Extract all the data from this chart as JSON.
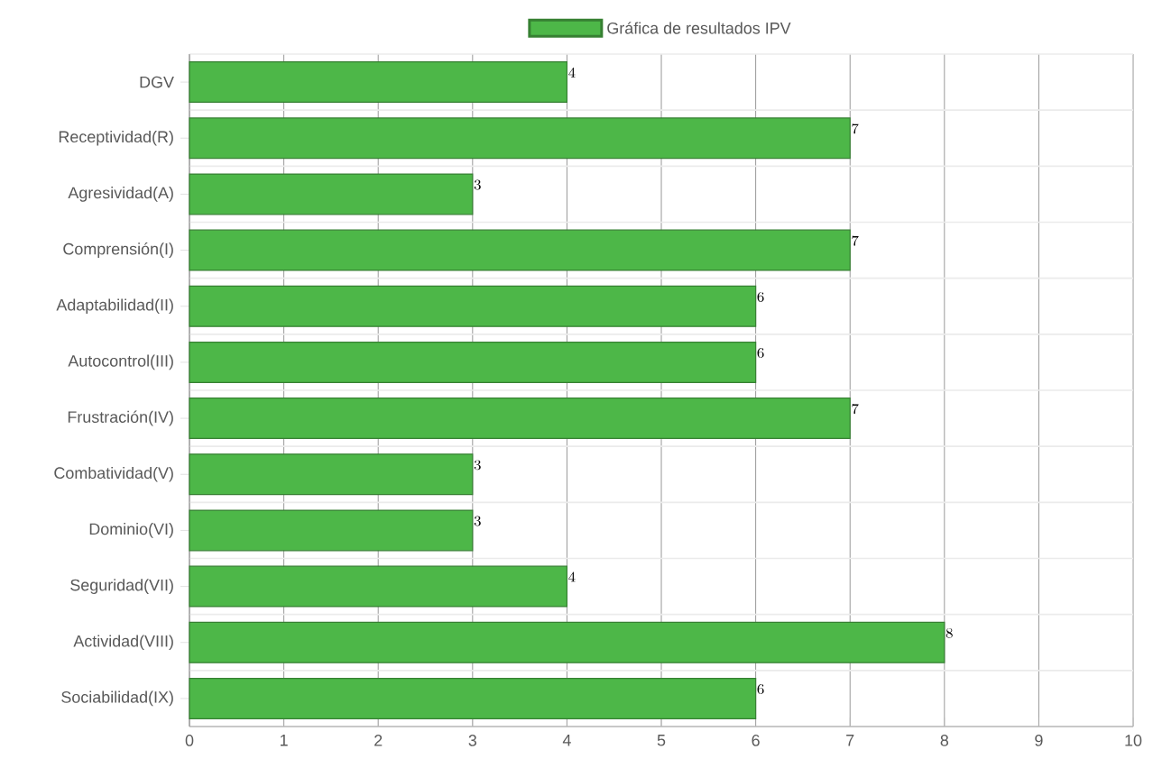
{
  "chart_data": {
    "type": "bar",
    "orientation": "horizontal",
    "categories": [
      "DGV",
      "Receptividad(R)",
      "Agresividad(A)",
      "Comprensión(I)",
      "Adaptabilidad(II)",
      "Autocontrol(III)",
      "Frustración(IV)",
      "Combatividad(V)",
      "Dominio(VI)",
      "Seguridad(VII)",
      "Actividad(VIII)",
      "Sociabilidad(IX)"
    ],
    "series": [
      {
        "name": "Gráfica de resultados IPV",
        "color": "#4db748",
        "values": [
          4,
          7,
          3,
          7,
          6,
          6,
          7,
          3,
          3,
          4,
          8,
          6
        ]
      }
    ],
    "xlim": [
      0,
      10
    ],
    "xticks": [
      0,
      1,
      2,
      3,
      4,
      5,
      6,
      7,
      8,
      9,
      10
    ],
    "grid": true,
    "legend": "top",
    "data_labels": true
  }
}
